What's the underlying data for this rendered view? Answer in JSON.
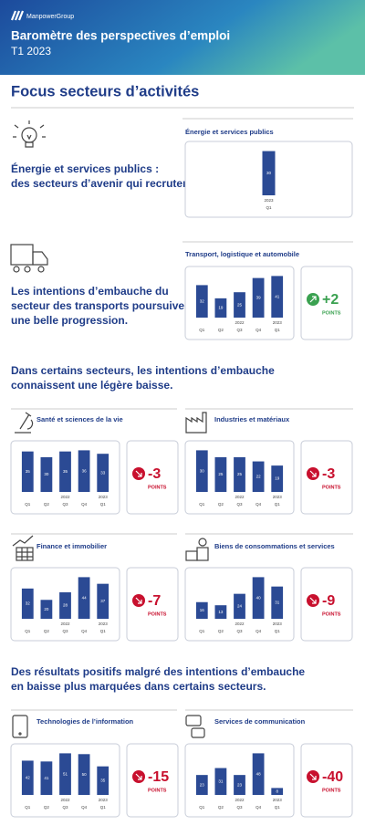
{
  "header": {
    "brand": "ManpowerGroup",
    "title": "Baromètre des perspectives d’emploi",
    "subtitle": "T1 2023"
  },
  "focus_title": "Focus secteurs d’activités",
  "blocks": [
    [
      "Énergie et services publics :",
      "des secteurs d’avenir qui recrutent."
    ],
    [
      "Les intentions d’embauche du",
      "secteur des transports poursuivent",
      "une belle progression."
    ]
  ],
  "headings": [
    [
      "Dans certains secteurs, les intentions d’embauche",
      "connaissent une légère baisse."
    ],
    [
      "Des résultats positifs malgré des intentions d’embauche",
      "en baisse plus marquées dans certains secteurs."
    ]
  ],
  "chart_data": [
    {
      "type": "bar",
      "title": "Énergie et services publics",
      "categories": [
        "Q1"
      ],
      "year_labels": [
        "2023"
      ],
      "values": [
        30
      ],
      "color": "#2b4a94"
    },
    {
      "type": "bar",
      "title": "Transport, logistique et automobile",
      "categories": [
        "Q1",
        "Q2",
        "Q3",
        "Q4",
        "Q1"
      ],
      "year_labels": [
        null,
        null,
        "2022",
        null,
        "2023"
      ],
      "values": [
        32,
        19,
        25,
        39,
        41
      ],
      "color": "#2b4a94",
      "delta": "+2",
      "delta_unit": "POINTS",
      "delta_color": "#3aa150"
    },
    {
      "type": "bar",
      "title": "Santé et sciences de la vie",
      "categories": [
        "Q1",
        "Q2",
        "Q3",
        "Q4",
        "Q1"
      ],
      "year_labels": [
        null,
        null,
        "2022",
        null,
        "2023"
      ],
      "values": [
        35,
        30,
        35,
        36,
        33
      ],
      "color": "#2b4a94",
      "delta": "-3",
      "delta_unit": "POINTS",
      "delta_color": "#c8102e"
    },
    {
      "type": "bar",
      "title": "Industries et matériaux",
      "categories": [
        "Q1",
        "Q2",
        "Q3",
        "Q4",
        "Q1"
      ],
      "year_labels": [
        null,
        null,
        "2022",
        null,
        "2023"
      ],
      "values": [
        30,
        25,
        25,
        22,
        19
      ],
      "color": "#2b4a94",
      "delta": "-3",
      "delta_unit": "POINTS",
      "delta_color": "#c8102e"
    },
    {
      "type": "bar",
      "title": "Finance et immobilier",
      "categories": [
        "Q1",
        "Q2",
        "Q3",
        "Q4",
        "Q1"
      ],
      "year_labels": [
        null,
        null,
        "2022",
        null,
        "2023"
      ],
      "values": [
        32,
        20,
        28,
        44,
        37
      ],
      "color": "#2b4a94",
      "delta": "-7",
      "delta_unit": "POINTS",
      "delta_color": "#c8102e"
    },
    {
      "type": "bar",
      "title": "Biens de consommations et services",
      "categories": [
        "Q1",
        "Q2",
        "Q3",
        "Q4",
        "Q1"
      ],
      "year_labels": [
        null,
        null,
        "2022",
        null,
        "2023"
      ],
      "values": [
        16,
        13,
        24,
        40,
        31
      ],
      "color": "#2b4a94",
      "delta": "-9",
      "delta_unit": "POINTS",
      "delta_color": "#c8102e"
    },
    {
      "type": "bar",
      "title": "Technologies de l’information",
      "categories": [
        "Q1",
        "Q2",
        "Q3",
        "Q4",
        "Q1"
      ],
      "year_labels": [
        null,
        null,
        "2022",
        null,
        "2023"
      ],
      "values": [
        42,
        41,
        51,
        50,
        35
      ],
      "color": "#2b4a94",
      "delta": "-15",
      "delta_unit": "POINTS",
      "delta_color": "#c8102e"
    },
    {
      "type": "bar",
      "title": "Services de communication",
      "categories": [
        "Q1",
        "Q2",
        "Q3",
        "Q4",
        "Q1"
      ],
      "year_labels": [
        null,
        null,
        "2022",
        null,
        "2023"
      ],
      "values": [
        23,
        31,
        23,
        48,
        8
      ],
      "color": "#2b4a94",
      "delta": "-40",
      "delta_unit": "POINTS",
      "delta_color": "#c8102e"
    }
  ]
}
